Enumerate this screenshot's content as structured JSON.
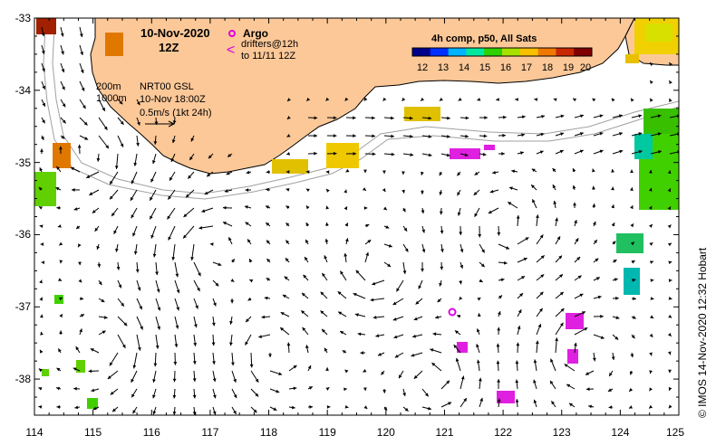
{
  "map": {
    "title_date": "10-Nov-2020",
    "title_time": "12Z",
    "argo_label": "Argo",
    "drifters_line1": "drifters@12h",
    "drifters_line2": "to 11/11 12Z",
    "depth_200": "200m",
    "depth_1000": "1000m",
    "product": "NRT00 GSL",
    "product_time": "10-Nov 18:00Z",
    "velocity_scale": "0.5m/s (1kt 24h)",
    "colorbar_title": "4h comp, p50, All Sats",
    "colorbar_ticks": [
      "12",
      "13",
      "14",
      "15",
      "16",
      "17",
      "18",
      "19",
      "20"
    ],
    "colorbar_colors": [
      "#00008c",
      "#0030ff",
      "#00b4ff",
      "#00e8a0",
      "#2ed000",
      "#a8e000",
      "#f8c000",
      "#f07800",
      "#c82800",
      "#800000"
    ],
    "credit": "© IMOS 14-Nov-2020 12:32 Hobart",
    "lon_ticks": [
      "114",
      "115",
      "116",
      "117",
      "118",
      "119",
      "120",
      "121",
      "122",
      "123",
      "124",
      "125"
    ],
    "lat_ticks": [
      "-33",
      "-34",
      "-35",
      "-36",
      "-37",
      "-38"
    ],
    "lon_range": [
      114,
      125
    ],
    "lat_range": [
      -38.5,
      -33
    ]
  }
}
